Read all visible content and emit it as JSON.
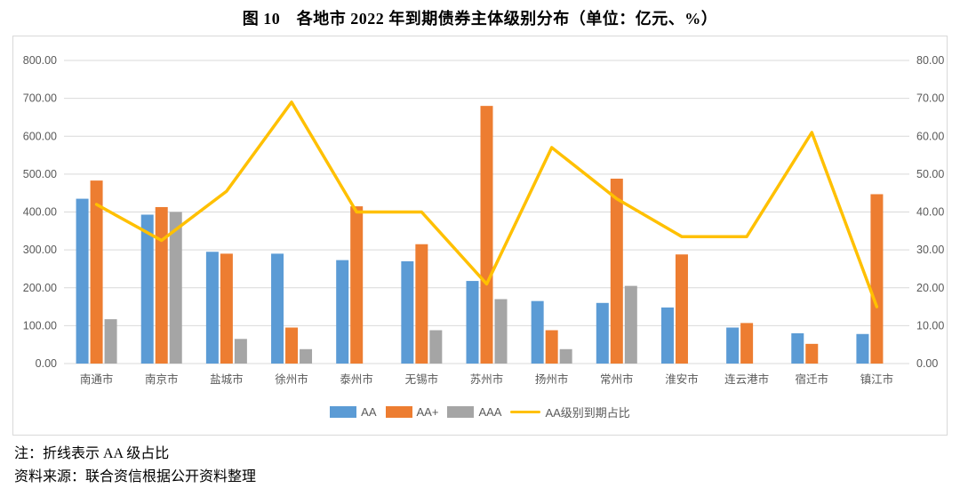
{
  "title": "图 10　各地市 2022 年到期债券主体级别分布（单位：亿元、%）",
  "notes": {
    "note": "注：折线表示 AA 级占比",
    "source": "资料来源：联合资信根据公开资料整理"
  },
  "colors": {
    "aa_bar": "#5B9BD5",
    "aa_plus_bar": "#ED7D31",
    "aaa_bar": "#A5A5A5",
    "ratio_line": "#FFC000",
    "gridline": "#D9D9D9",
    "axis_text": "#595959"
  },
  "chart_data": {
    "type": "bar",
    "title": "图 10　各地市 2022 年到期债券主体级别分布（单位：亿元、%）",
    "categories": [
      "南通市",
      "南京市",
      "盐城市",
      "徐州市",
      "泰州市",
      "无锡市",
      "苏州市",
      "扬州市",
      "常州市",
      "淮安市",
      "连云港市",
      "宿迁市",
      "镇江市"
    ],
    "series": [
      {
        "name": "AA",
        "kind": "bar",
        "axis": "left",
        "color": "#5B9BD5",
        "values": [
          435,
          393,
          295,
          290,
          273,
          270,
          218,
          165,
          160,
          148,
          95,
          80,
          78
        ]
      },
      {
        "name": "AA+",
        "kind": "bar",
        "axis": "left",
        "color": "#ED7D31",
        "values": [
          483,
          413,
          290,
          95,
          415,
          315,
          680,
          88,
          488,
          288,
          107,
          52,
          447
        ]
      },
      {
        "name": "AAA",
        "kind": "bar",
        "axis": "left",
        "color": "#A5A5A5",
        "values": [
          117,
          400,
          65,
          38,
          0,
          88,
          170,
          38,
          205,
          0,
          0,
          0,
          0
        ]
      },
      {
        "name": "AA级别到期占比",
        "kind": "line",
        "axis": "right",
        "color": "#FFC000",
        "values": [
          42,
          32.5,
          45.5,
          69,
          40,
          40,
          21,
          57,
          43.5,
          33.5,
          33.5,
          61,
          15
        ]
      }
    ],
    "left_axis": {
      "min": 0,
      "max": 800,
      "step": 100,
      "ticks": [
        "800.00",
        "700.00",
        "600.00",
        "500.00",
        "400.00",
        "300.00",
        "200.00",
        "100.00",
        "0.00"
      ]
    },
    "right_axis": {
      "min": 0,
      "max": 80,
      "step": 10,
      "ticks": [
        "80.00",
        "70.00",
        "60.00",
        "50.00",
        "40.00",
        "30.00",
        "20.00",
        "10.00",
        "0.00"
      ]
    },
    "grid": true,
    "legend_position": "bottom"
  }
}
